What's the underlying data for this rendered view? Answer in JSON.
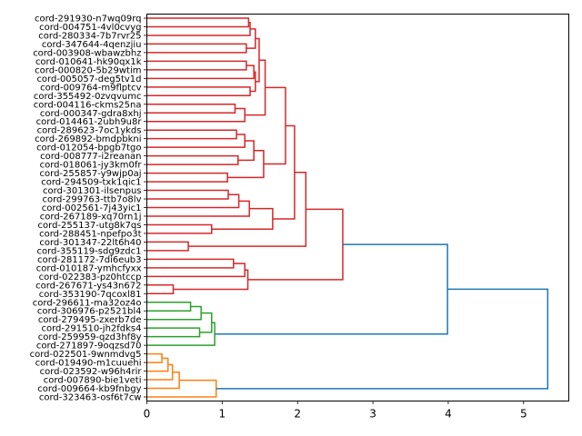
{
  "chart_data": {
    "type": "dendrogram",
    "title": "",
    "xlabel": "",
    "ylabel": "",
    "orientation": "right",
    "xlim": [
      0,
      5.6
    ],
    "xticks": [
      "0",
      "1",
      "2",
      "3",
      "4",
      "5"
    ],
    "xtick_values": [
      0,
      1,
      2,
      3,
      4,
      5
    ],
    "colors": {
      "red": "#d62728",
      "green": "#2ca02c",
      "orange": "#ff7f0e",
      "above_threshold": "#1f77b4"
    },
    "leaves": [
      "cord-291930-n7wq09rq",
      "cord-004751-4vl0cvyg",
      "cord-280334-7b7rvr25",
      "cord-347644-4qenzjiu",
      "cord-003908-wbawzbhz",
      "cord-010641-hk90qx1k",
      "cord-000820-5b29wtim",
      "cord-005057-deg5tv1d",
      "cord-009764-m9flptcv",
      "cord-355492-0zvqvumc",
      "cord-004116-ckms25na",
      "cord-000347-gdra8xhj",
      "cord-014461-2ubh9u8r",
      "cord-289623-7oc1ykds",
      "cord-269892-bmdpbkni",
      "cord-012054-bpgb7tgo",
      "cord-008777-i2reanan",
      "cord-018061-jy3km0fr",
      "cord-255857-y9wjp0aj",
      "cord-294509-txk1qic1",
      "cord-301301-ilsenpus",
      "cord-299763-ttb7o8lv",
      "cord-002561-7j43yic1",
      "cord-267189-xq70rn1j",
      "cord-255137-utg8k7qs",
      "cord-288451-npefpo3t",
      "cord-301347-22lt6h40",
      "cord-355119-sdg9zdc1",
      "cord-281172-7di6eub3",
      "cord-010187-ymhcfyxx",
      "cord-022383-pz0htccp",
      "cord-267671-ys43n672",
      "cord-353190-7qcoxl81",
      "cord-296611-ma32oz4o",
      "cord-306976-p2521bl4",
      "cord-279495-zxerb7de",
      "cord-291510-jh2fdks4",
      "cord-259959-qzd3hf8y",
      "cord-271897-9oqzsd70",
      "cord-022501-9wnmdvg5",
      "cord-019490-m1cuuehi",
      "cord-023592-w96h4rir",
      "cord-007890-bie1veti",
      "cord-009664-kb9fnbgy",
      "cord-323463-osf6t7cw"
    ],
    "merges": [
      {
        "id": "c0",
        "a": 0,
        "b": 1,
        "height": 1.35,
        "color": "red"
      },
      {
        "id": "c1",
        "a": "c0",
        "b": 2,
        "height": 1.37,
        "color": "red"
      },
      {
        "id": "c2",
        "a": 3,
        "b": 4,
        "height": 1.32,
        "color": "red"
      },
      {
        "id": "c3",
        "a": "c1",
        "b": "c2",
        "height": 1.44,
        "color": "red"
      },
      {
        "id": "c4",
        "a": 5,
        "b": 6,
        "height": 1.32,
        "color": "red"
      },
      {
        "id": "c5",
        "a": "c4",
        "b": 7,
        "height": 1.42,
        "color": "red"
      },
      {
        "id": "c6",
        "a": 8,
        "b": 9,
        "height": 1.37,
        "color": "red"
      },
      {
        "id": "c7",
        "a": "c5",
        "b": "c6",
        "height": 1.44,
        "color": "red"
      },
      {
        "id": "c8",
        "a": "c3",
        "b": "c7",
        "height": 1.49,
        "color": "red"
      },
      {
        "id": "c9",
        "a": 10,
        "b": 11,
        "height": 1.17,
        "color": "red"
      },
      {
        "id": "c10",
        "a": "c9",
        "b": 12,
        "height": 1.3,
        "color": "red"
      },
      {
        "id": "c11",
        "a": "c8",
        "b": "c10",
        "height": 1.57,
        "color": "red"
      },
      {
        "id": "c12",
        "a": 13,
        "b": 14,
        "height": 1.19,
        "color": "red"
      },
      {
        "id": "c13",
        "a": "c12",
        "b": 15,
        "height": 1.3,
        "color": "red"
      },
      {
        "id": "c14",
        "a": 16,
        "b": 17,
        "height": 1.21,
        "color": "red"
      },
      {
        "id": "c15",
        "a": "c13",
        "b": "c14",
        "height": 1.42,
        "color": "red"
      },
      {
        "id": "c16",
        "a": 18,
        "b": 19,
        "height": 1.07,
        "color": "red"
      },
      {
        "id": "c17",
        "a": "c15",
        "b": "c16",
        "height": 1.55,
        "color": "red"
      },
      {
        "id": "c18",
        "a": "c11",
        "b": "c17",
        "height": 1.84,
        "color": "red"
      },
      {
        "id": "c19",
        "a": 20,
        "b": 21,
        "height": 1.08,
        "color": "red"
      },
      {
        "id": "c20",
        "a": "c19",
        "b": 22,
        "height": 1.22,
        "color": "red"
      },
      {
        "id": "c21",
        "a": "c20",
        "b": 23,
        "height": 1.36,
        "color": "red"
      },
      {
        "id": "c22",
        "a": 24,
        "b": 25,
        "height": 0.86,
        "color": "red"
      },
      {
        "id": "c23",
        "a": "c21",
        "b": "c22",
        "height": 1.67,
        "color": "red"
      },
      {
        "id": "c24",
        "a": "c18",
        "b": "c23",
        "height": 1.96,
        "color": "red"
      },
      {
        "id": "c25",
        "a": 26,
        "b": 27,
        "height": 0.55,
        "color": "red"
      },
      {
        "id": "c26",
        "a": "c24",
        "b": "c25",
        "height": 2.11,
        "color": "red"
      },
      {
        "id": "c27",
        "a": 28,
        "b": 29,
        "height": 1.15,
        "color": "red"
      },
      {
        "id": "c28",
        "a": "c27",
        "b": 30,
        "height": 1.3,
        "color": "red"
      },
      {
        "id": "c29",
        "a": 31,
        "b": 32,
        "height": 0.35,
        "color": "red"
      },
      {
        "id": "c30",
        "a": "c28",
        "b": "c29",
        "height": 1.34,
        "color": "red"
      },
      {
        "id": "c31",
        "a": "c26",
        "b": "c30",
        "height": 2.6,
        "color": "red"
      },
      {
        "id": "c32",
        "a": 33,
        "b": 34,
        "height": 0.58,
        "color": "green"
      },
      {
        "id": "c33",
        "a": "c32",
        "b": 35,
        "height": 0.72,
        "color": "green"
      },
      {
        "id": "c34",
        "a": 36,
        "b": 37,
        "height": 0.7,
        "color": "green"
      },
      {
        "id": "c35",
        "a": "c33",
        "b": "c34",
        "height": 0.86,
        "color": "green"
      },
      {
        "id": "c36",
        "a": "c35",
        "b": 38,
        "height": 0.9,
        "color": "green"
      },
      {
        "id": "c37",
        "a": "c31",
        "b": "c36",
        "height": 3.99,
        "color": "above_threshold"
      },
      {
        "id": "c38",
        "a": 39,
        "b": 40,
        "height": 0.2,
        "color": "orange"
      },
      {
        "id": "c39",
        "a": "c38",
        "b": 41,
        "height": 0.28,
        "color": "orange"
      },
      {
        "id": "c40",
        "a": "c39",
        "b": 42,
        "height": 0.34,
        "color": "orange"
      },
      {
        "id": "c41",
        "a": "c40",
        "b": 43,
        "height": 0.43,
        "color": "orange"
      },
      {
        "id": "c42",
        "a": "c41",
        "b": 44,
        "height": 0.92,
        "color": "orange"
      },
      {
        "id": "c43",
        "a": "c37",
        "b": "c42",
        "height": 5.32,
        "color": "above_threshold"
      }
    ]
  }
}
